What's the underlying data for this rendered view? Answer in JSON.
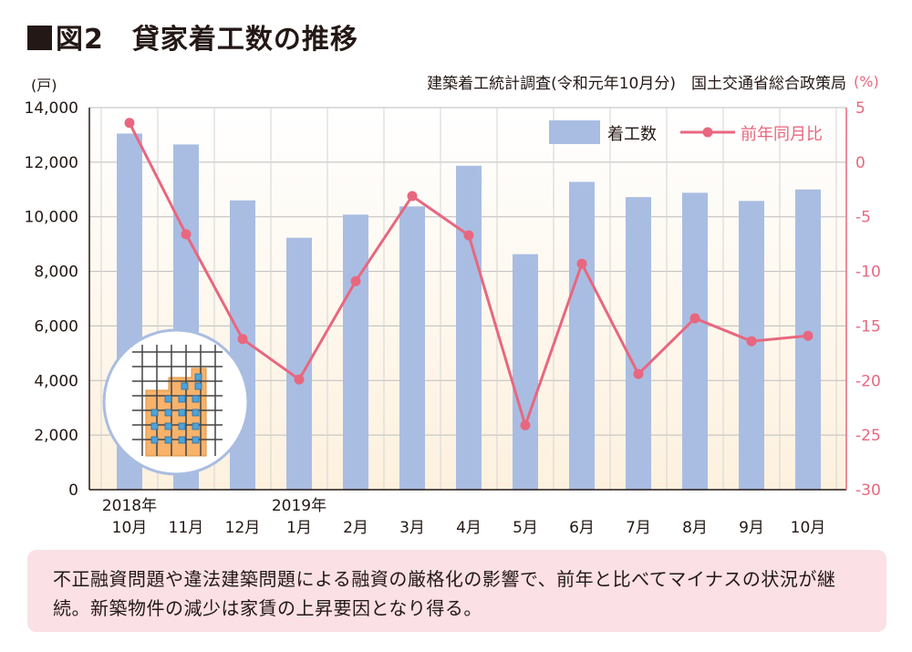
{
  "figure": {
    "title_label": "図2",
    "title": "貸家着工数の推移",
    "source": "建築着工統計調査(令和元年10月分)　国土交通省総合政策局",
    "note": "不正融資問題や違法建築問題による融資の厳格化の影響で、前年と比べてマイナスの状況が継続。新築物件の減少は家賃の上昇要因となり得る。"
  },
  "chart_data": {
    "type": "bar+line",
    "categories": [
      "10月",
      "11月",
      "12月",
      "1月",
      "2月",
      "3月",
      "4月",
      "5月",
      "6月",
      "7月",
      "8月",
      "9月",
      "10月"
    ],
    "year_labels": [
      {
        "index": 0,
        "label": "2018年"
      },
      {
        "index": 3,
        "label": "2019年"
      }
    ],
    "series": [
      {
        "name": "着工数",
        "type": "bar",
        "axis": "left",
        "color": "#a9bde2",
        "values": [
          13050,
          12650,
          10600,
          9230,
          10080,
          10380,
          11870,
          8630,
          11280,
          10720,
          10880,
          10580,
          11000
        ]
      },
      {
        "name": "前年同月比",
        "type": "line",
        "axis": "right",
        "color": "#e8677f",
        "values": [
          3.6,
          -6.6,
          -16.2,
          -19.9,
          -10.9,
          -3.1,
          -6.7,
          -24.1,
          -9.3,
          -19.4,
          -14.3,
          -16.4,
          -15.9
        ]
      }
    ],
    "y_left": {
      "unit": "(戸)",
      "min": 0,
      "max": 14000,
      "ticks": [
        0,
        2000,
        4000,
        6000,
        8000,
        10000,
        12000,
        14000
      ],
      "tick_labels": [
        "0",
        "2,000",
        "4,000",
        "6,000",
        "8,000",
        "10,000",
        "12,000",
        "14,000"
      ]
    },
    "y_right": {
      "unit": "(%)",
      "min": -30,
      "max": 5,
      "ticks": [
        5,
        0,
        -5,
        -10,
        -15,
        -20,
        -25,
        -30
      ],
      "tick_labels": [
        "5",
        "0",
        "-5",
        "-10",
        "-15",
        "-20",
        "-25",
        "-30"
      ],
      "color": "#e8677f"
    },
    "grid": true,
    "legend_position": "top-right",
    "background_gradient": [
      "#ffffff",
      "#fdf1de"
    ]
  },
  "illustration": {
    "name": "building-icon",
    "wall_color": "#f8b26a",
    "window_color": "#4da3dc"
  }
}
